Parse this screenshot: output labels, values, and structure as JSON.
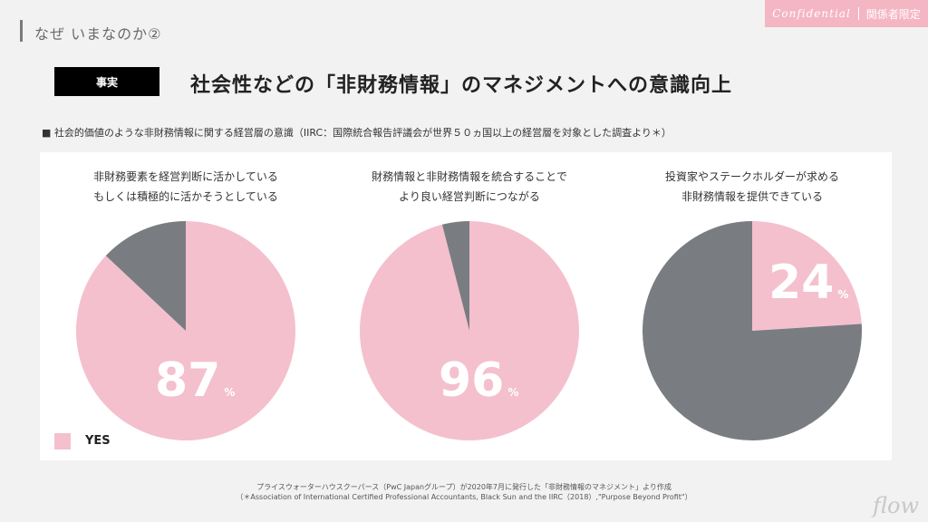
{
  "header": {
    "section_title": "なぜ いまなのか②",
    "confidential": "Confidential",
    "restricted": "関係者限定"
  },
  "slide": {
    "tag": "事実",
    "title": "社会性などの「非財務情報」のマネジメントへの意識向上",
    "note": "■ 社会的価値のような非財務情報に関する経営層の意識（IIRC：国際統合報告評議会が世界５０ヵ国以上の経営層を対象とした調査より＊）"
  },
  "colors": {
    "yes": "#f4c0cd",
    "other": "#797d82",
    "accent": "#f4b6c3"
  },
  "chart_data": {
    "type": "pie",
    "legend": [
      "YES"
    ],
    "charts": [
      {
        "label_line1": "非財務要素を経営判断に活かしている",
        "label_line2": "もしくは積極的に活かそうとしている",
        "yes": 87,
        "value_text": "87",
        "unit": "%"
      },
      {
        "label_line1": "財務情報と非財務情報を統合することで",
        "label_line2": "より良い経営判断につながる",
        "yes": 96,
        "value_text": "96",
        "unit": "%"
      },
      {
        "label_line1": "投資家やステークホルダーが求める",
        "label_line2": "非財務情報を提供できている",
        "yes": 24,
        "value_text": "24",
        "unit": "%"
      }
    ]
  },
  "footer": {
    "line1": "プライスウォーターハウスクーパース（PwC Japanグループ）が2020年7月に発行した「非財務情報のマネジメント」より作成",
    "line2": "（＊Association of International Certified Professional Accountants, Black Sun and the  IIRC（2018）,\"Purpose Beyond Profit\"）"
  },
  "logo": "flow"
}
